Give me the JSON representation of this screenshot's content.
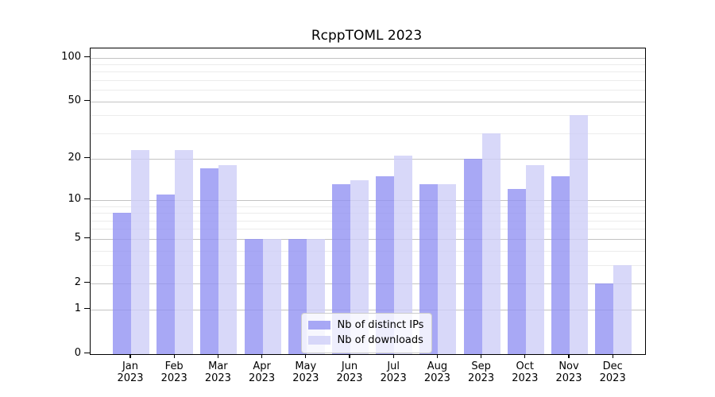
{
  "chart_data": {
    "type": "bar",
    "title": "RcppTOML 2023",
    "x_categories": [
      "Jan 2023",
      "Feb 2023",
      "Mar 2023",
      "Apr 2023",
      "May 2023",
      "Jun 2023",
      "Jul 2023",
      "Aug 2023",
      "Sep 2023",
      "Oct 2023",
      "Nov 2023",
      "Dec 2023"
    ],
    "x_tick_months": [
      "Jan",
      "Feb",
      "Mar",
      "Apr",
      "May",
      "Jun",
      "Jul",
      "Aug",
      "Sep",
      "Oct",
      "Nov",
      "Dec"
    ],
    "x_tick_year": "2023",
    "series": [
      {
        "name": "Nb of distinct IPs",
        "color": "rgba(146,146,243,0.8)",
        "values": [
          8,
          11,
          17,
          5,
          5,
          13,
          15,
          13,
          20,
          12,
          15,
          2
        ]
      },
      {
        "name": "Nb of downloads",
        "color": "rgba(206,206,247,0.8)",
        "values": [
          23,
          23,
          18,
          5,
          5,
          14,
          21,
          13,
          30,
          18,
          40,
          3
        ]
      }
    ],
    "y_axis": {
      "scale": "log1p",
      "tick_labels": [
        100,
        50,
        20,
        10,
        5,
        2,
        1,
        0
      ],
      "minor_gridlines": [
        3,
        4,
        6,
        7,
        8,
        9,
        30,
        40,
        60,
        70,
        80,
        90
      ],
      "ylim": [
        0,
        116
      ]
    },
    "grid": "on",
    "legend": {
      "position": "lower-center",
      "entries": [
        "Nb of distinct IPs",
        "Nb of downloads"
      ]
    }
  },
  "colors": {
    "background": "#ffffff",
    "bar_ips": "rgba(146,146,243,0.8)",
    "bar_downloads": "rgba(206,206,247,0.8)",
    "grid_major": "#c3c3c3",
    "grid_minor": "#ececec",
    "spine": "#000000",
    "legend_border": "#cccccc",
    "legend_bg": "rgba(255,255,255,0.8)"
  }
}
